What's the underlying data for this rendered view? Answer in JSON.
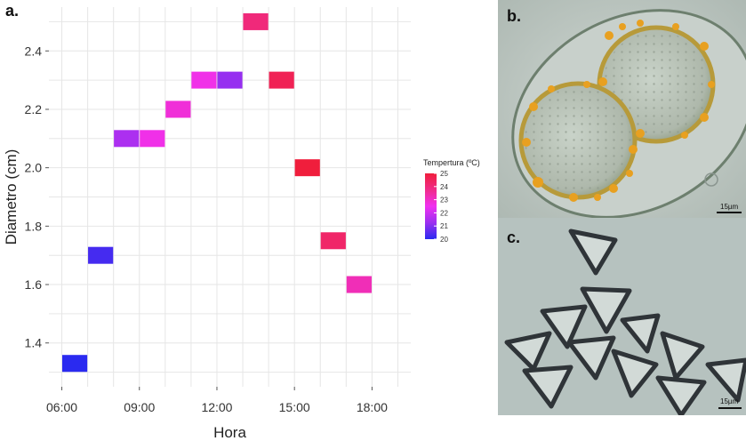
{
  "panels": {
    "a": "a.",
    "b": "b.",
    "c": "c."
  },
  "scale_labels": {
    "b": "15µm",
    "c": "15µm"
  },
  "chart_data": {
    "type": "heatmap",
    "xlabel": "Hora",
    "ylabel": "Diametro (cm)",
    "x_ticks": [
      "06:00",
      "09:00",
      "12:00",
      "15:00",
      "18:00"
    ],
    "x_tick_hours": [
      6,
      9,
      12,
      15,
      18
    ],
    "xlim": [
      5.5,
      19.5
    ],
    "y_ticks": [
      1.4,
      1.6,
      1.8,
      2.0,
      2.2,
      2.4
    ],
    "y_tick_labels": [
      "1.4",
      "1.6",
      "1.8",
      "2.0",
      "2.2",
      "2.4"
    ],
    "ylim": [
      1.25,
      2.55
    ],
    "grid": true,
    "legend": {
      "title": "Tempertura (ºC)",
      "ticks": [
        "20",
        "21",
        "22",
        "23",
        "24",
        "25"
      ],
      "range": [
        20,
        25
      ],
      "placement": "right",
      "colors": [
        "#2a2af0",
        "#9b2ff0",
        "#f030f0",
        "#f02c8a",
        "#f01e3c"
      ]
    },
    "points": [
      {
        "hour": 6.5,
        "diameter": 1.33,
        "temp": 20
      },
      {
        "hour": 7.5,
        "diameter": 1.7,
        "temp": 20.3
      },
      {
        "hour": 8.5,
        "diameter": 2.1,
        "temp": 21.5
      },
      {
        "hour": 9.5,
        "diameter": 2.1,
        "temp": 22.6
      },
      {
        "hour": 10.5,
        "diameter": 2.2,
        "temp": 22.8
      },
      {
        "hour": 11.5,
        "diameter": 2.3,
        "temp": 22.6
      },
      {
        "hour": 12.5,
        "diameter": 2.3,
        "temp": 21.2
      },
      {
        "hour": 13.5,
        "diameter": 2.5,
        "temp": 24.0
      },
      {
        "hour": 14.5,
        "diameter": 2.3,
        "temp": 24.6
      },
      {
        "hour": 15.5,
        "diameter": 2.0,
        "temp": 25.0
      },
      {
        "hour": 16.5,
        "diameter": 1.75,
        "temp": 24.3
      },
      {
        "hour": 17.5,
        "diameter": 1.6,
        "temp": 23.2
      }
    ]
  }
}
